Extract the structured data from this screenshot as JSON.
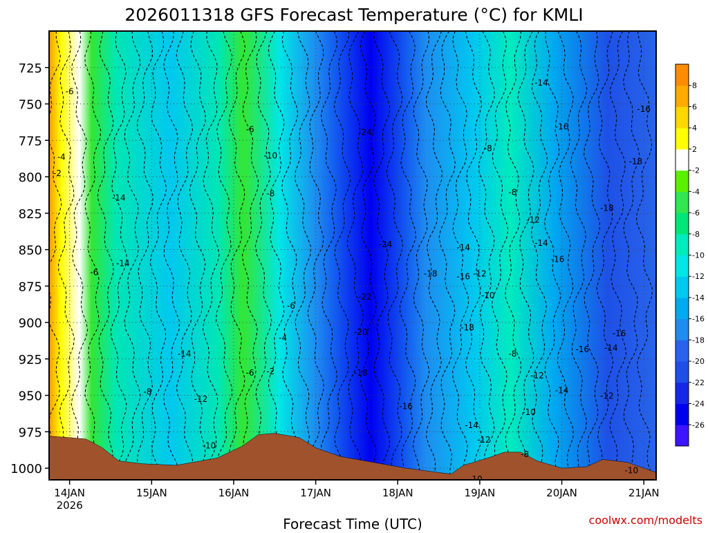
{
  "chart_data": {
    "type": "heatmap",
    "title": "2026011318 GFS Forecast Temperature (°C) for KMLI",
    "xlabel": "Forecast Time (UTC)",
    "credit": "coolwx.com/modelts",
    "x_ticks": [
      "14JAN",
      "15JAN",
      "16JAN",
      "17JAN",
      "18JAN",
      "19JAN",
      "20JAN",
      "21JAN"
    ],
    "x_year_label": "2026",
    "x_range_days": [
      13.75,
      21.15
    ],
    "y_ticks": [
      725,
      750,
      775,
      800,
      825,
      850,
      875,
      900,
      925,
      950,
      975,
      1000
    ],
    "y_range_hpa": [
      700,
      1008
    ],
    "y_axis_reversed": true,
    "grid": "dotted",
    "colorbar": {
      "placement": "right",
      "levels": [
        -28,
        -26,
        -24,
        -22,
        -20,
        -18,
        -16,
        -14,
        -12,
        -10,
        -8,
        -6,
        -4,
        -2,
        2,
        4,
        6,
        8,
        10
      ],
      "labels": [
        "8",
        "6",
        "4",
        "2",
        "-2",
        "-4",
        "-6",
        "-8",
        "-10",
        "-12",
        "-14",
        "-16",
        "-18",
        "-20",
        "-22",
        "-24",
        "-26"
      ],
      "colors": [
        "#3c14ff",
        "#0000f0",
        "#1428e6",
        "#1e50e6",
        "#2864eb",
        "#1e8cf0",
        "#00aaf0",
        "#00c8f0",
        "#00e6e6",
        "#00ebbe",
        "#00e678",
        "#32e650",
        "#5af000",
        "#ffffff",
        "#ffff00",
        "#ffd700",
        "#ffaa00",
        "#ff8c00"
      ]
    },
    "contour_labels": [
      {
        "label": "-6",
        "x": 14.0,
        "p": 742
      },
      {
        "label": "-4",
        "x": 13.9,
        "p": 787
      },
      {
        "label": "-2",
        "x": 13.85,
        "p": 798
      },
      {
        "label": "-6",
        "x": 14.3,
        "p": 866
      },
      {
        "label": "-14",
        "x": 14.6,
        "p": 815
      },
      {
        "label": "-14",
        "x": 14.65,
        "p": 860
      },
      {
        "label": "-14",
        "x": 15.4,
        "p": 922
      },
      {
        "label": "-8",
        "x": 14.95,
        "p": 948
      },
      {
        "label": "-12",
        "x": 15.6,
        "p": 953
      },
      {
        "label": "-10",
        "x": 15.7,
        "p": 985
      },
      {
        "label": "-6",
        "x": 16.2,
        "p": 935
      },
      {
        "label": "-2",
        "x": 16.45,
        "p": 934
      },
      {
        "label": "-4",
        "x": 16.6,
        "p": 911
      },
      {
        "label": "-6",
        "x": 16.7,
        "p": 889
      },
      {
        "label": "-6",
        "x": 16.2,
        "p": 768
      },
      {
        "label": "-10",
        "x": 16.45,
        "p": 786
      },
      {
        "label": "-8",
        "x": 16.45,
        "p": 812
      },
      {
        "label": "-24",
        "x": 17.6,
        "p": 770
      },
      {
        "label": "-24",
        "x": 17.85,
        "p": 847
      },
      {
        "label": "-22",
        "x": 17.6,
        "p": 883
      },
      {
        "label": "-20",
        "x": 17.55,
        "p": 907
      },
      {
        "label": "-18",
        "x": 17.55,
        "p": 935
      },
      {
        "label": "-16",
        "x": 18.1,
        "p": 958
      },
      {
        "label": "-18",
        "x": 18.4,
        "p": 867
      },
      {
        "label": "-14",
        "x": 18.8,
        "p": 849
      },
      {
        "label": "-12",
        "x": 19.0,
        "p": 867
      },
      {
        "label": "-16",
        "x": 18.8,
        "p": 869
      },
      {
        "label": "-10",
        "x": 19.1,
        "p": 882
      },
      {
        "label": "-18",
        "x": 18.85,
        "p": 904
      },
      {
        "label": "-8",
        "x": 19.1,
        "p": 781
      },
      {
        "label": "-8",
        "x": 19.4,
        "p": 811
      },
      {
        "label": "-8",
        "x": 19.4,
        "p": 922
      },
      {
        "label": "-12",
        "x": 19.65,
        "p": 830
      },
      {
        "label": "-14",
        "x": 19.75,
        "p": 846
      },
      {
        "label": "-14",
        "x": 19.75,
        "p": 736
      },
      {
        "label": "-16",
        "x": 20.0,
        "p": 766
      },
      {
        "label": "-16",
        "x": 19.95,
        "p": 857
      },
      {
        "label": "-18",
        "x": 20.9,
        "p": 790
      },
      {
        "label": "-16",
        "x": 21.0,
        "p": 754
      },
      {
        "label": "-18",
        "x": 20.55,
        "p": 822
      },
      {
        "label": "-16",
        "x": 20.7,
        "p": 908
      },
      {
        "label": "-14",
        "x": 20.6,
        "p": 918
      },
      {
        "label": "-16",
        "x": 20.25,
        "p": 919
      },
      {
        "label": "-12",
        "x": 19.7,
        "p": 937
      },
      {
        "label": "-14",
        "x": 20.0,
        "p": 947
      },
      {
        "label": "-12",
        "x": 20.55,
        "p": 951
      },
      {
        "label": "-10",
        "x": 19.6,
        "p": 962
      },
      {
        "label": "-14",
        "x": 18.9,
        "p": 971
      },
      {
        "label": "-12",
        "x": 19.05,
        "p": 981
      },
      {
        "label": "-8",
        "x": 19.55,
        "p": 991
      },
      {
        "label": "-10",
        "x": 18.95,
        "p": 1008
      },
      {
        "label": "-10",
        "x": 20.85,
        "p": 1002
      }
    ]
  }
}
